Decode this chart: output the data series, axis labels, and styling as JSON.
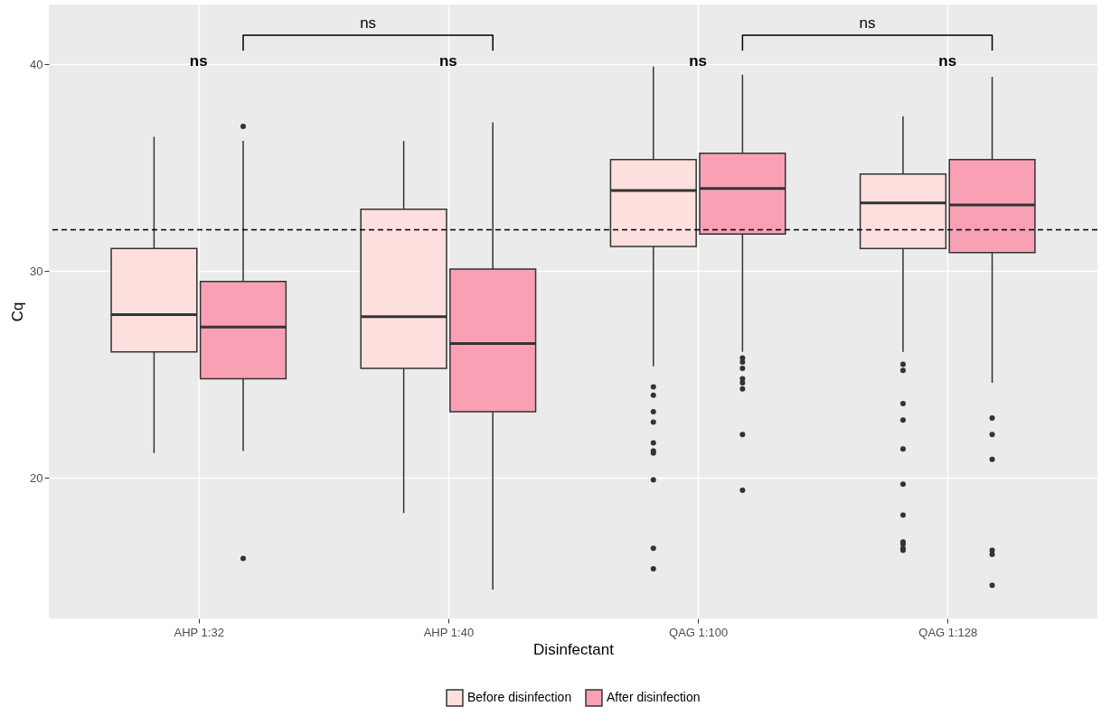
{
  "chart_data": {
    "type": "box",
    "xlabel": "Disinfectant",
    "ylabel": "Cq",
    "categories": [
      "AHP 1:32",
      "AHP 1:40",
      "QAG 1:100",
      "QAG 1:128"
    ],
    "ylim": [
      13.2,
      42.9
    ],
    "yticks": [
      20,
      30,
      40
    ],
    "grid": true,
    "legend": "bottom",
    "series": [
      {
        "name": "Before disinfection",
        "color": "#fde0de",
        "boxes": [
          {
            "low": 21.2,
            "q1": 26.1,
            "median": 27.9,
            "q3": 31.1,
            "high": 36.5
          },
          {
            "low": 18.3,
            "q1": 25.3,
            "median": 27.8,
            "q3": 33.0,
            "high": 36.3
          },
          {
            "low": 25.4,
            "q1": 31.2,
            "median": 33.9,
            "q3": 35.4,
            "high": 39.9,
            "outliers": [
              24.4,
              24.0,
              23.2,
              22.7,
              21.7,
              21.3,
              21.2,
              19.9,
              16.6,
              15.6
            ]
          },
          {
            "low": 26.1,
            "q1": 31.1,
            "median": 33.3,
            "q3": 34.7,
            "high": 37.5,
            "outliers": [
              25.5,
              25.2,
              23.6,
              22.8,
              21.4,
              19.7,
              18.2,
              16.9,
              16.8,
              16.6,
              16.5
            ]
          }
        ]
      },
      {
        "name": "After disinfection",
        "color": "#f9a0b5",
        "boxes": [
          {
            "low": 21.3,
            "q1": 24.8,
            "median": 27.3,
            "q3": 29.5,
            "high": 36.3,
            "outliers": [
              37.0,
              16.1
            ]
          },
          {
            "low": 14.6,
            "q1": 23.2,
            "median": 26.5,
            "q3": 30.1,
            "high": 37.2
          },
          {
            "low": 26.1,
            "q1": 31.8,
            "median": 34.0,
            "q3": 35.7,
            "high": 39.5,
            "outliers": [
              25.8,
              25.6,
              25.3,
              24.8,
              24.6,
              24.3,
              22.1,
              19.4
            ]
          },
          {
            "low": 24.6,
            "q1": 30.9,
            "median": 33.2,
            "q3": 35.4,
            "high": 39.4,
            "outliers": [
              22.9,
              22.1,
              20.9,
              16.5,
              16.3,
              14.8
            ]
          }
        ]
      }
    ],
    "ref_lines": [
      {
        "axis": "y",
        "value": 32,
        "color": "#000000",
        "line_style": "dashed"
      }
    ],
    "annotations": [
      "ns",
      "ns",
      "ns",
      "ns",
      "ns",
      "ns"
    ]
  }
}
